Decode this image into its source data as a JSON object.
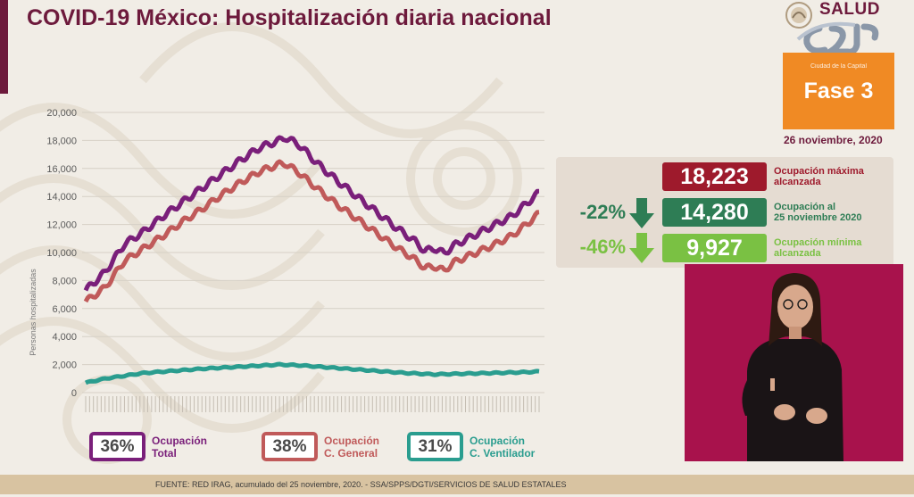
{
  "header": {
    "title": "COVID-19 México: Hospitalización diaria nacional"
  },
  "branding": {
    "salud_text": "SALUD",
    "phase_caption": "Ciudad de la Capital",
    "phase_label": "Fase 3",
    "date": "26 noviembre, 2020"
  },
  "summary": {
    "max": {
      "value": "18,223",
      "label_1": "Ocupación máxima",
      "label_2": "alcanzada",
      "color": "#9e1a2c"
    },
    "current": {
      "pct": "-22%",
      "value": "14,280",
      "label_1": "Ocupación al",
      "label_2": "25 noviembre 2020",
      "color": "#2e7d55"
    },
    "min": {
      "pct": "-46%",
      "value": "9,927",
      "label_1": "Ocupación mínima",
      "label_2": "alcanzada",
      "color": "#7ac143"
    }
  },
  "legend": [
    {
      "pct": "36%",
      "label_1": "Ocupación",
      "label_2": "Total",
      "color": "#7a1f7a"
    },
    {
      "pct": "38%",
      "label_1": "Ocupación",
      "label_2": "C. General",
      "color": "#c05a5a"
    },
    {
      "pct": "31%",
      "label_1": "Ocupación",
      "label_2": "C. Ventilador",
      "color": "#2a9d8f"
    }
  ],
  "footer": {
    "source": "FUENTE: RED IRAG, acumulado del 25 noviembre, 2020. -   SSA/SPPS/DGTI/SERVICIOS DE SALUD ESTATALES"
  },
  "chart_data": {
    "type": "line",
    "ylabel": "Personas hospitalizadas",
    "ylim": [
      0,
      20000
    ],
    "yticks": [
      0,
      2000,
      4000,
      6000,
      8000,
      10000,
      12000,
      14000,
      16000,
      18000,
      20000
    ],
    "ytick_labels": [
      "0",
      "2,000",
      "4,000",
      "6,000",
      "8,000",
      "10,000",
      "12,000",
      "14,000",
      "16,000",
      "18,000",
      "20,000"
    ],
    "grid": true,
    "legend_position": "bottom",
    "x_count": 235,
    "series": [
      {
        "name": "Ocupación Total",
        "color": "#7a1f7a",
        "keypoints": [
          [
            0,
            7300
          ],
          [
            10,
            8600
          ],
          [
            20,
            10600
          ],
          [
            30,
            11500
          ],
          [
            40,
            12600
          ],
          [
            50,
            13600
          ],
          [
            60,
            14600
          ],
          [
            70,
            15600
          ],
          [
            80,
            16600
          ],
          [
            90,
            17500
          ],
          [
            100,
            18000
          ],
          [
            103,
            18223
          ],
          [
            110,
            17700
          ],
          [
            120,
            16300
          ],
          [
            130,
            15100
          ],
          [
            140,
            14000
          ],
          [
            150,
            12900
          ],
          [
            160,
            11800
          ],
          [
            170,
            10800
          ],
          [
            175,
            10100
          ],
          [
            180,
            10300
          ],
          [
            185,
            9927
          ],
          [
            190,
            10500
          ],
          [
            200,
            11200
          ],
          [
            210,
            11900
          ],
          [
            220,
            12600
          ],
          [
            230,
            13800
          ],
          [
            234,
            14280
          ]
        ]
      },
      {
        "name": "Ocupación C. General",
        "color": "#c05a5a",
        "keypoints": [
          [
            0,
            6500
          ],
          [
            10,
            7500
          ],
          [
            20,
            9400
          ],
          [
            30,
            10300
          ],
          [
            40,
            11200
          ],
          [
            50,
            12200
          ],
          [
            60,
            13100
          ],
          [
            70,
            14100
          ],
          [
            80,
            15000
          ],
          [
            90,
            15800
          ],
          [
            100,
            16300
          ],
          [
            103,
            16350
          ],
          [
            110,
            15700
          ],
          [
            120,
            14500
          ],
          [
            130,
            13400
          ],
          [
            140,
            12400
          ],
          [
            150,
            11400
          ],
          [
            160,
            10400
          ],
          [
            170,
            9500
          ],
          [
            175,
            8900
          ],
          [
            180,
            9000
          ],
          [
            185,
            8700
          ],
          [
            190,
            9300
          ],
          [
            200,
            9900
          ],
          [
            210,
            10500
          ],
          [
            220,
            11200
          ],
          [
            230,
            12300
          ],
          [
            234,
            12800
          ]
        ]
      },
      {
        "name": "Ocupación C. Ventilador",
        "color": "#2a9d8f",
        "keypoints": [
          [
            0,
            700
          ],
          [
            10,
            1000
          ],
          [
            20,
            1200
          ],
          [
            30,
            1400
          ],
          [
            40,
            1500
          ],
          [
            60,
            1700
          ],
          [
            80,
            1850
          ],
          [
            100,
            2000
          ],
          [
            110,
            1950
          ],
          [
            130,
            1750
          ],
          [
            150,
            1550
          ],
          [
            165,
            1400
          ],
          [
            180,
            1300
          ],
          [
            195,
            1350
          ],
          [
            210,
            1400
          ],
          [
            225,
            1450
          ],
          [
            234,
            1500
          ]
        ]
      }
    ]
  }
}
